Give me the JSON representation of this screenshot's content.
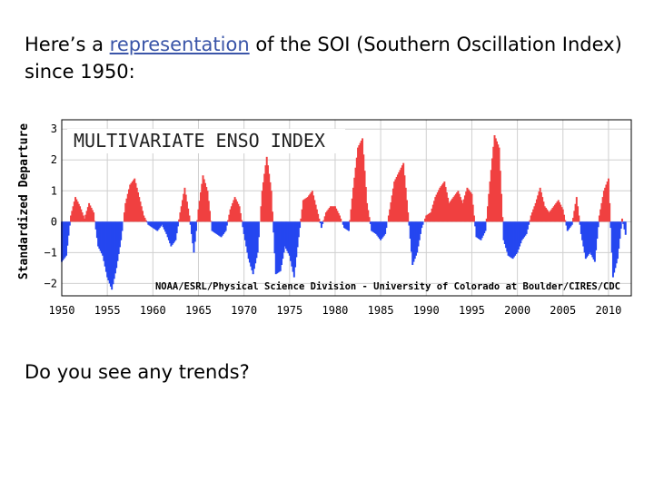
{
  "slide": {
    "intro_before": "Here’s a ",
    "intro_link": "representation",
    "intro_after": " of the SOI (Southern Oscillation Index) since 1950:",
    "question": "Do you see any trends?"
  },
  "chart_data": {
    "type": "area",
    "title": "MULTIVARIATE ENSO INDEX",
    "ylabel": "Standardized Departure",
    "credit": "NOAA/ESRL/Physical Science Division - University of Colorado at Boulder/CIRES/CDC",
    "xlim": [
      1950,
      2012.5
    ],
    "ylim": [
      -2.4,
      3.3
    ],
    "xticks": [
      1950,
      1955,
      1960,
      1965,
      1970,
      1975,
      1980,
      1985,
      1990,
      1995,
      2000,
      2005,
      2010
    ],
    "yticks": [
      -2,
      -1,
      0,
      1,
      2,
      3
    ],
    "grid": true,
    "positive_color": "#f04040",
    "negative_color": "#2546f0",
    "x": [
      1950.0,
      1950.5,
      1951.0,
      1951.5,
      1952.0,
      1952.5,
      1953.0,
      1953.5,
      1954.0,
      1954.5,
      1955.0,
      1955.5,
      1956.0,
      1956.5,
      1957.0,
      1957.5,
      1958.0,
      1958.5,
      1959.0,
      1959.5,
      1960.0,
      1960.5,
      1961.0,
      1961.5,
      1962.0,
      1962.5,
      1963.0,
      1963.5,
      1964.0,
      1964.5,
      1965.0,
      1965.5,
      1966.0,
      1966.5,
      1967.0,
      1967.5,
      1968.0,
      1968.5,
      1969.0,
      1969.5,
      1970.0,
      1970.5,
      1971.0,
      1971.5,
      1972.0,
      1972.5,
      1973.0,
      1973.5,
      1974.0,
      1974.5,
      1975.0,
      1975.5,
      1976.0,
      1976.5,
      1977.0,
      1977.5,
      1978.0,
      1978.5,
      1979.0,
      1979.5,
      1980.0,
      1980.5,
      1981.0,
      1981.5,
      1982.0,
      1982.5,
      1983.0,
      1983.5,
      1984.0,
      1984.5,
      1985.0,
      1985.5,
      1986.0,
      1986.5,
      1987.0,
      1987.5,
      1988.0,
      1988.5,
      1989.0,
      1989.5,
      1990.0,
      1990.5,
      1991.0,
      1991.5,
      1992.0,
      1992.5,
      1993.0,
      1993.5,
      1994.0,
      1994.5,
      1995.0,
      1995.5,
      1996.0,
      1996.5,
      1997.0,
      1997.5,
      1998.0,
      1998.5,
      1999.0,
      1999.5,
      2000.0,
      2000.5,
      2001.0,
      2001.5,
      2002.0,
      2002.5,
      2003.0,
      2003.5,
      2004.0,
      2004.5,
      2005.0,
      2005.5,
      2006.0,
      2006.5,
      2007.0,
      2007.5,
      2008.0,
      2008.5,
      2009.0,
      2009.5,
      2010.0,
      2010.5,
      2011.0,
      2011.5,
      2012.0
    ],
    "values": [
      -1.3,
      -1.1,
      0.2,
      0.8,
      0.5,
      0.1,
      0.6,
      0.3,
      -0.8,
      -1.1,
      -1.8,
      -2.2,
      -1.5,
      -0.6,
      0.6,
      1.2,
      1.4,
      0.8,
      0.2,
      -0.1,
      -0.2,
      -0.3,
      -0.1,
      -0.4,
      -0.8,
      -0.6,
      0.3,
      1.1,
      0.2,
      -1.0,
      0.4,
      1.5,
      1.0,
      -0.3,
      -0.4,
      -0.5,
      -0.3,
      0.4,
      0.8,
      0.5,
      -0.4,
      -1.2,
      -1.7,
      -1.0,
      1.0,
      2.1,
      1.0,
      -1.7,
      -1.6,
      -0.8,
      -1.1,
      -1.8,
      -0.5,
      0.7,
      0.8,
      1.0,
      0.4,
      -0.2,
      0.3,
      0.5,
      0.5,
      0.2,
      -0.2,
      -0.3,
      1.1,
      2.4,
      2.7,
      0.6,
      -0.3,
      -0.4,
      -0.6,
      -0.4,
      0.4,
      1.3,
      1.6,
      1.9,
      0.3,
      -1.4,
      -1.0,
      -0.2,
      0.2,
      0.3,
      0.8,
      1.1,
      1.3,
      0.6,
      0.8,
      1.0,
      0.6,
      1.1,
      0.9,
      -0.5,
      -0.6,
      -0.3,
      1.3,
      2.8,
      2.4,
      -0.6,
      -1.1,
      -1.2,
      -1.0,
      -0.6,
      -0.4,
      0.2,
      0.6,
      1.1,
      0.5,
      0.3,
      0.5,
      0.7,
      0.4,
      -0.3,
      -0.1,
      0.8,
      -0.4,
      -1.2,
      -1.0,
      -1.3,
      0.2,
      1.0,
      1.4,
      -1.8,
      -1.2,
      0.1,
      -0.6
    ]
  }
}
